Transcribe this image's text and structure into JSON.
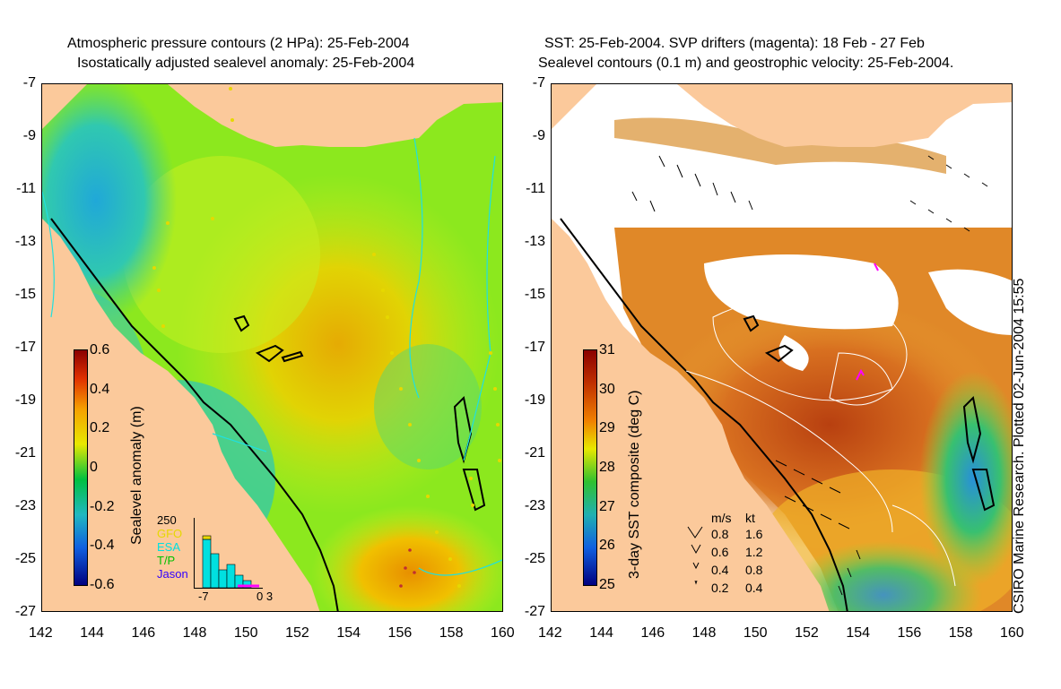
{
  "left_panel": {
    "title_line1": "Atmospheric pressure contours (2 HPa): 25-Feb-2004",
    "title_line2": "Isostatically adjusted sealevel anomaly: 25-Feb-2004",
    "colorbar_label": "Sealevel anomaly (m)",
    "colorbar_ticks": [
      "0.6",
      "0.4",
      "0.2",
      "0",
      "-0.2",
      "-0.4",
      "-0.6"
    ],
    "histogram": {
      "ymax_label": "250",
      "legend": [
        {
          "label": "GFO",
          "color": "#e6d800"
        },
        {
          "label": "ESA",
          "color": "#00e0e0"
        },
        {
          "label": "T/P",
          "color": "#00c000"
        },
        {
          "label": "Jason",
          "color": "#3000ff"
        }
      ],
      "x_left_label": "-7",
      "x_right_label": "0 3"
    }
  },
  "right_panel": {
    "title_line1": "SST: 25-Feb-2004. SVP drifters (magenta): 18 Feb - 27 Feb",
    "title_line2": "Sealevel contours (0.1 m) and geostrophic velocity: 25-Feb-2004.",
    "colorbar_label": "3-day SST composite (deg C)",
    "colorbar_ticks": [
      "31",
      "30",
      "29",
      "28",
      "27",
      "26",
      "25"
    ],
    "velocity_legend": {
      "header_ms": "m/s",
      "header_kt": "kt",
      "rows": [
        {
          "ms": "0.8",
          "kt": "1.6"
        },
        {
          "ms": "0.6",
          "kt": "1.2"
        },
        {
          "ms": "0.4",
          "kt": "0.8"
        },
        {
          "ms": "0.2",
          "kt": "0.4"
        }
      ]
    }
  },
  "y_axis_ticks": [
    "-7",
    "-9",
    "-11",
    "-13",
    "-15",
    "-17",
    "-19",
    "-21",
    "-23",
    "-25",
    "-27"
  ],
  "x_axis_ticks": [
    "142",
    "144",
    "146",
    "148",
    "150",
    "152",
    "154",
    "156",
    "158",
    "160"
  ],
  "credit": "CSIRO Marine Research. Plotted 02-Jun-2004 15:55",
  "colors": {
    "land": "#fbc99b",
    "sla_high": "#f5a000",
    "sla_mid": "#98ee10",
    "sla_low": "#30c8c0",
    "sst_warm": "#c05018",
    "sst_cool": "#30a8d8"
  }
}
